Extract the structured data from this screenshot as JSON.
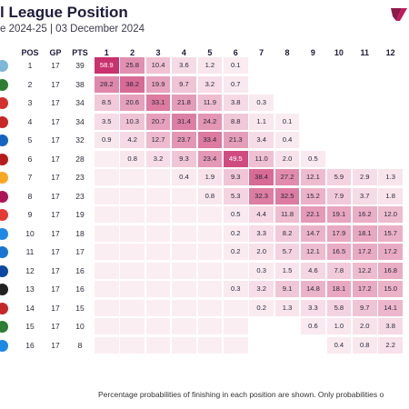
{
  "title": "l League Position",
  "subtitle": "e 2024-25 | 03 December 2024",
  "footnote": "Percentage probabilities of finishing in each position are shown. Only probabilities o",
  "columns": {
    "pos": "POS",
    "gp": "GP",
    "pts": "PTS"
  },
  "colors": {
    "heat": "#c2185b",
    "empty": "#fbeef2",
    "title": "#1e1b3a"
  },
  "chart_data": {
    "type": "table",
    "position_labels": [
      "1",
      "2",
      "3",
      "4",
      "5",
      "6",
      "7",
      "8",
      "9",
      "10",
      "11",
      "12"
    ],
    "rows": [
      {
        "pos": "1",
        "gp": "17",
        "pts": "39",
        "badge": "#7fb7d6",
        "probs": [
          "58.9",
          "25.8",
          "10.4",
          "3.6",
          "1.2",
          "0.1",
          "",
          "",
          "",
          "",
          "",
          ""
        ]
      },
      {
        "pos": "2",
        "gp": "17",
        "pts": "38",
        "badge": "#2e7d32",
        "probs": [
          "28.2",
          "38.2",
          "19.9",
          "9.7",
          "3.2",
          "0.7",
          "",
          "",
          "",
          "",
          "",
          ""
        ]
      },
      {
        "pos": "3",
        "gp": "17",
        "pts": "34",
        "badge": "#d32f2f",
        "probs": [
          "8.5",
          "20.6",
          "33.1",
          "21.8",
          "11.9",
          "3.8",
          "0.3",
          "",
          "",
          "",
          "",
          ""
        ]
      },
      {
        "pos": "4",
        "gp": "17",
        "pts": "34",
        "badge": "#c62828",
        "probs": [
          "3.5",
          "10.3",
          "20.7",
          "31.4",
          "24.2",
          "8.8",
          "1.1",
          "0.1",
          "",
          "",
          "",
          ""
        ]
      },
      {
        "pos": "5",
        "gp": "17",
        "pts": "32",
        "badge": "#1565c0",
        "probs": [
          "0.9",
          "4.2",
          "12.7",
          "23.7",
          "33.4",
          "21.3",
          "3.4",
          "0.4",
          "",
          "",
          "",
          ""
        ]
      },
      {
        "pos": "6",
        "gp": "17",
        "pts": "28",
        "badge": "#b71c1c",
        "probs": [
          "",
          "0.8",
          "3.2",
          "9.3",
          "23.4",
          "49.5",
          "11.0",
          "2.0",
          "0.5",
          "",
          "",
          ""
        ]
      },
      {
        "pos": "7",
        "gp": "17",
        "pts": "23",
        "badge": "#f9a825",
        "probs": [
          "",
          "",
          "",
          "0.4",
          "1.9",
          "9.3",
          "38.4",
          "27.2",
          "12.1",
          "5.9",
          "2.9",
          "1.3"
        ]
      },
      {
        "pos": "8",
        "gp": "17",
        "pts": "23",
        "badge": "#ad1457",
        "probs": [
          "",
          "",
          "",
          "",
          "0.8",
          "5.3",
          "32.3",
          "32.5",
          "15.2",
          "7.9",
          "3.7",
          "1.8"
        ]
      },
      {
        "pos": "9",
        "gp": "17",
        "pts": "19",
        "badge": "#e53935",
        "probs": [
          "",
          "",
          "",
          "",
          "",
          "0.5",
          "4.4",
          "11.8",
          "22.1",
          "19.1",
          "16.2",
          "12.0"
        ]
      },
      {
        "pos": "10",
        "gp": "17",
        "pts": "18",
        "badge": "#1e88e5",
        "probs": [
          "",
          "",
          "",
          "",
          "",
          "0.2",
          "3.3",
          "8.2",
          "14.7",
          "17.9",
          "18.1",
          "15.7"
        ]
      },
      {
        "pos": "11",
        "gp": "17",
        "pts": "17",
        "badge": "#1976d2",
        "probs": [
          "",
          "",
          "",
          "",
          "",
          "0.2",
          "2.0",
          "5.7",
          "12.1",
          "16.5",
          "17.2",
          "17.2"
        ]
      },
      {
        "pos": "12",
        "gp": "17",
        "pts": "16",
        "badge": "#0d47a1",
        "probs": [
          "",
          "",
          "",
          "",
          "",
          "",
          "0.3",
          "1.5",
          "4.6",
          "7.8",
          "12.2",
          "16.8"
        ]
      },
      {
        "pos": "13",
        "gp": "17",
        "pts": "16",
        "badge": "#212121",
        "probs": [
          "",
          "",
          "",
          "",
          "",
          "0.3",
          "3.2",
          "9.1",
          "14.8",
          "18.1",
          "17.2",
          "15.0"
        ]
      },
      {
        "pos": "14",
        "gp": "17",
        "pts": "15",
        "badge": "#c62828",
        "probs": [
          "",
          "",
          "",
          "",
          "",
          "",
          "0.2",
          "1.3",
          "3.3",
          "5.8",
          "9.7",
          "14.1"
        ]
      },
      {
        "pos": "15",
        "gp": "17",
        "pts": "10",
        "badge": "#2e7d32",
        "probs": [
          "",
          "",
          "",
          "",
          "",
          "",
          "",
          "",
          "0.6",
          "1.0",
          "2.0",
          "3.8"
        ]
      },
      {
        "pos": "16",
        "gp": "17",
        "pts": "8",
        "badge": "#1e88e5",
        "probs": [
          "",
          "",
          "",
          "",
          "",
          "",
          "",
          "",
          "",
          "0.4",
          "0.8",
          "2.2"
        ]
      }
    ]
  }
}
